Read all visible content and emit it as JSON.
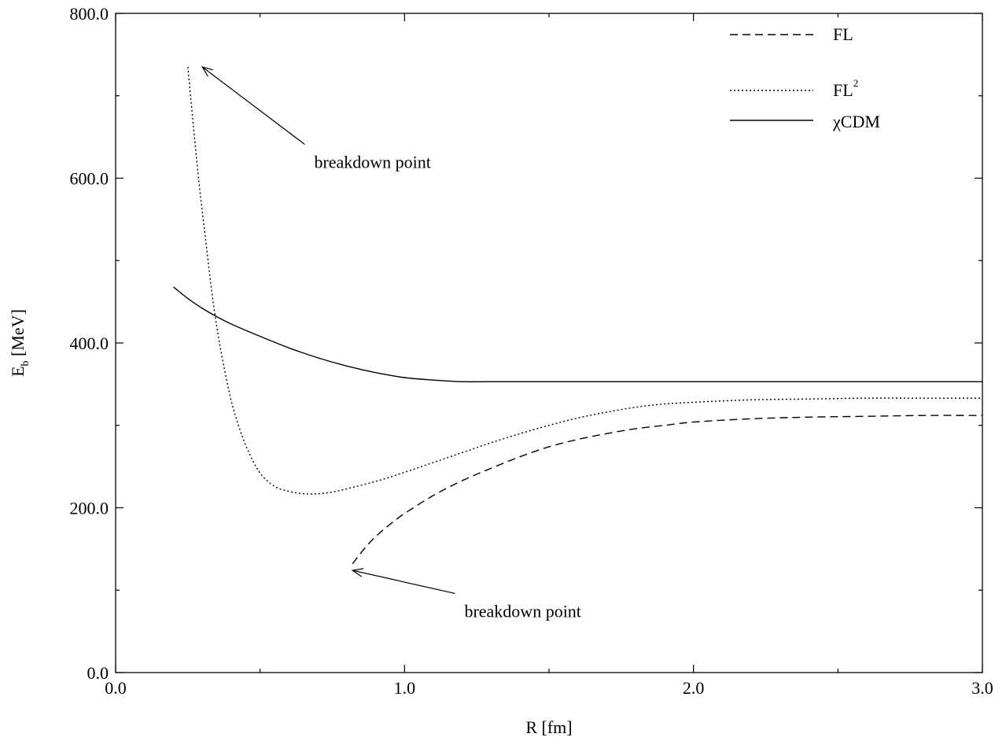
{
  "chart_data": {
    "type": "line",
    "title": "",
    "xlabel": "R [fm]",
    "ylabel_main": "E",
    "ylabel_sub": "b",
    "ylabel_rest": " [MeV]",
    "xlim": [
      0.0,
      3.0
    ],
    "ylim": [
      0.0,
      800.0
    ],
    "x_ticks": [
      0.0,
      1.0,
      2.0,
      3.0
    ],
    "x_tick_labels": [
      "0.0",
      "1.0",
      "2.0",
      "3.0"
    ],
    "x_minor_step": 0.5,
    "y_ticks": [
      0,
      200,
      400,
      600,
      800
    ],
    "y_tick_labels": [
      "0.0",
      "200.0",
      "400.0",
      "600.0",
      "800.0"
    ],
    "y_minor_step": 100,
    "grid": false,
    "legend_position": "top-right",
    "series": [
      {
        "name": "FL",
        "style": "dashed",
        "x": [
          0.82,
          0.86,
          0.9,
          0.95,
          1.0,
          1.1,
          1.2,
          1.3,
          1.4,
          1.5,
          1.6,
          1.7,
          1.8,
          1.9,
          2.0,
          2.2,
          2.4,
          2.6,
          2.8,
          3.0
        ],
        "y": [
          132,
          150,
          165,
          180,
          193,
          215,
          233,
          248,
          262,
          274,
          283,
          290,
          296,
          300,
          304,
          308,
          310,
          311,
          312,
          312
        ]
      },
      {
        "name": "FL",
        "name_sup": "2",
        "style": "dotted",
        "x": [
          0.25,
          0.27,
          0.29,
          0.31,
          0.33,
          0.35,
          0.37,
          0.4,
          0.43,
          0.46,
          0.5,
          0.55,
          0.6,
          0.65,
          0.7,
          0.75,
          0.8,
          0.9,
          1.0,
          1.1,
          1.2,
          1.3,
          1.4,
          1.5,
          1.6,
          1.7,
          1.8,
          1.9,
          2.0,
          2.2,
          2.4,
          2.6,
          2.8,
          3.0
        ],
        "y": [
          735,
          660,
          590,
          530,
          470,
          420,
          380,
          330,
          295,
          268,
          242,
          226,
          220,
          217,
          217,
          219,
          223,
          232,
          243,
          255,
          267,
          279,
          290,
          300,
          309,
          316,
          322,
          326,
          328,
          331,
          332,
          333,
          333,
          333
        ]
      },
      {
        "name": "χCDM",
        "style": "solid",
        "x": [
          0.2,
          0.25,
          0.3,
          0.35,
          0.4,
          0.5,
          0.6,
          0.7,
          0.8,
          0.9,
          1.0,
          1.1,
          1.2,
          1.3,
          1.5,
          2.0,
          2.5,
          3.0
        ],
        "y": [
          468,
          454,
          442,
          432,
          423,
          408,
          394,
          382,
          372,
          364,
          358,
          355,
          353,
          353,
          353,
          353,
          353,
          353
        ]
      }
    ],
    "annotations": [
      {
        "text": "breakdown point",
        "arrow_to": [
          0.3,
          735
        ],
        "text_at": [
          0.66,
          620
        ]
      },
      {
        "text": "breakdown point",
        "arrow_to": [
          0.82,
          124
        ],
        "text_at": [
          1.18,
          75
        ]
      }
    ]
  }
}
